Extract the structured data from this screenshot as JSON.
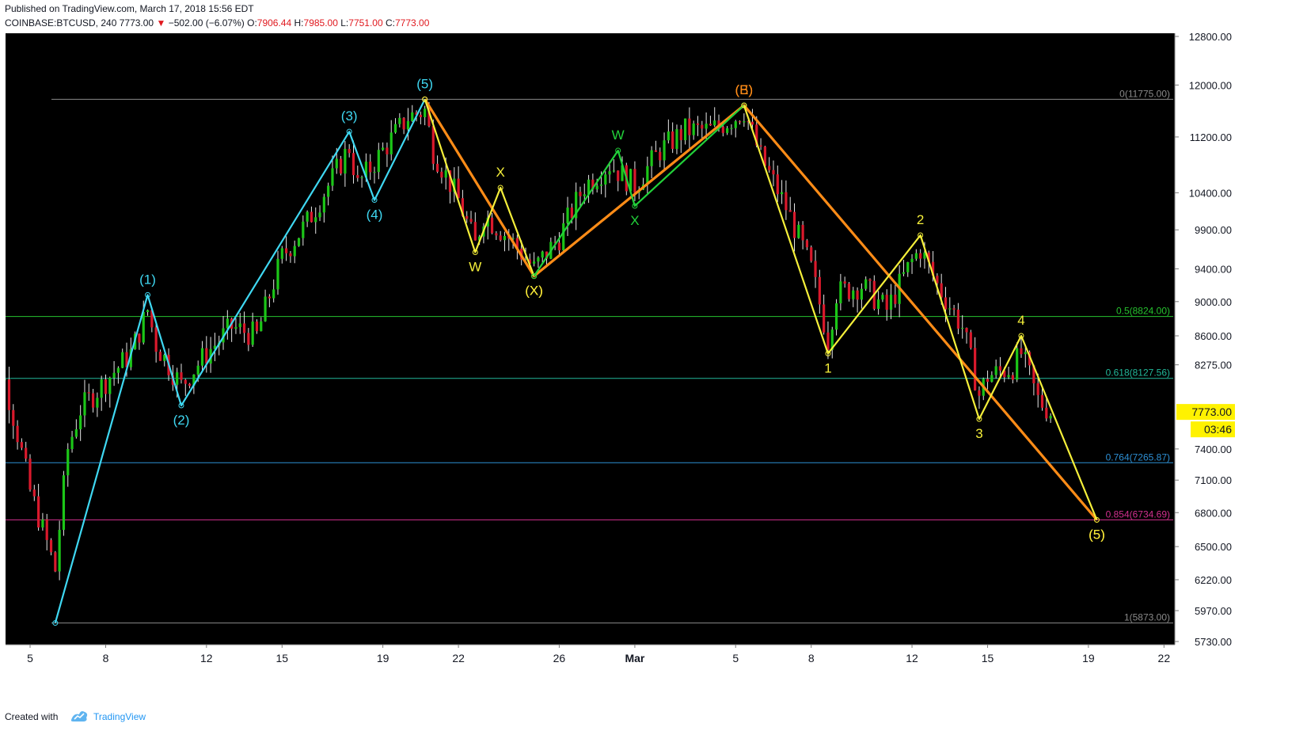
{
  "header": {
    "published": "Published on TradingView.com, March 17, 2018 15:56 EDT",
    "symbol": "COINBASE:BTCUSD, 240",
    "last": "7773.00",
    "change_arrow": "▼",
    "change": "−502.00 (−6.07%)",
    "open_label": "O:",
    "open": "7906.44",
    "high_label": "H:",
    "high": "7985.00",
    "low_label": "L:",
    "low": "7751.00",
    "close_label": "C:",
    "close": "7773.00"
  },
  "footer": {
    "created_with": "Created with",
    "brand": "TradingView"
  },
  "colors": {
    "background": "#000000",
    "up": "#1cc618",
    "down": "#d9192c",
    "cyan": "#3fd8f2",
    "orange": "#ff8c17",
    "yellow": "#f5ef3a",
    "green_wave": "#22d13a",
    "price_tag": "#fff200"
  },
  "chart_data": {
    "type": "candlestick",
    "symbol": "COINBASE:BTCUSD",
    "interval": "240",
    "x_axis_ticks": [
      {
        "label": "5",
        "x": "2018-02-05"
      },
      {
        "label": "8",
        "x": "2018-02-08"
      },
      {
        "label": "12",
        "x": "2018-02-12"
      },
      {
        "label": "15",
        "x": "2018-02-15"
      },
      {
        "label": "19",
        "x": "2018-02-19"
      },
      {
        "label": "22",
        "x": "2018-02-22"
      },
      {
        "label": "26",
        "x": "2018-02-26"
      },
      {
        "label": "Mar",
        "x": "2018-03-01"
      },
      {
        "label": "5",
        "x": "2018-03-05"
      },
      {
        "label": "8",
        "x": "2018-03-08"
      },
      {
        "label": "12",
        "x": "2018-03-12"
      },
      {
        "label": "15",
        "x": "2018-03-15"
      },
      {
        "label": "19",
        "x": "2018-03-19"
      },
      {
        "label": "22",
        "x": "2018-03-22"
      }
    ],
    "y_axis_ticks": [
      12800,
      12000,
      11200,
      10400,
      9900,
      9400,
      9000,
      8600,
      8275,
      7400,
      7100,
      6800,
      6500,
      6220,
      5970,
      5730
    ],
    "ylim": [
      5730,
      12800
    ],
    "y_scale": "log",
    "last_price": "7773.00",
    "bar_countdown": "03:46",
    "fib_levels": [
      {
        "label": "0(11775.00)",
        "ratio": 0,
        "price": 11775.0,
        "color": "#8a8a8a"
      },
      {
        "label": "0.5(8824.00)",
        "ratio": 0.5,
        "price": 8824.0,
        "color": "#26c22e"
      },
      {
        "label": "0.618(8127.56)",
        "ratio": 0.618,
        "price": 8127.56,
        "color": "#22b89a"
      },
      {
        "label": "0.764(7265.87)",
        "ratio": 0.764,
        "price": 7265.87,
        "color": "#2d8fd4"
      },
      {
        "label": "0.854(6734.69)",
        "ratio": 0.854,
        "price": 6734.69,
        "color": "#d2308f"
      },
      {
        "label": "1(5873.00)",
        "ratio": 1,
        "price": 5873.0,
        "color": "#8a8a8a"
      }
    ],
    "series": [
      {
        "name": "cyan",
        "color": "#3fd8f2",
        "points": [
          {
            "x": "2018-02-06T00:00",
            "y": 5873
          },
          {
            "x": "2018-02-09T16:00",
            "y": 9080,
            "label": "(1)",
            "pos": "above"
          },
          {
            "x": "2018-02-11T00:00",
            "y": 7840,
            "label": "(2)",
            "pos": "below"
          },
          {
            "x": "2018-02-17T16:00",
            "y": 11280,
            "label": "(3)",
            "pos": "above"
          },
          {
            "x": "2018-02-18T16:00",
            "y": 10300,
            "label": "(4)",
            "pos": "below"
          },
          {
            "x": "2018-02-20T16:00",
            "y": 11775,
            "label": "(5)",
            "pos": "above"
          }
        ]
      },
      {
        "name": "orange",
        "color": "#ff8c17",
        "points": [
          {
            "x": "2018-02-20T16:00",
            "y": 11775
          },
          {
            "x": "2018-02-25T00:00",
            "y": 9310,
            "label": "(X)",
            "pos": "below"
          },
          {
            "x": "2018-03-05T08:00",
            "y": 11680,
            "label": "(B)",
            "pos": "above"
          },
          {
            "x": "2018-03-19T08:00",
            "y": 6734.69,
            "label": "(5)",
            "pos": "below"
          }
        ]
      },
      {
        "name": "yellow-1",
        "color": "#f5ef3a",
        "points": [
          {
            "x": "2018-02-20T16:00",
            "y": 11775
          },
          {
            "x": "2018-02-22T16:00",
            "y": 9610,
            "label": "W",
            "pos": "below"
          },
          {
            "x": "2018-02-23T16:00",
            "y": 10470,
            "label": "X",
            "pos": "above"
          },
          {
            "x": "2018-02-25T00:00",
            "y": 9310
          }
        ]
      },
      {
        "name": "green",
        "color": "#22d13a",
        "points": [
          {
            "x": "2018-02-25T00:00",
            "y": 9310
          },
          {
            "x": "2018-02-28T08:00",
            "y": 11000,
            "label": "W",
            "pos": "above"
          },
          {
            "x": "2018-03-01T00:00",
            "y": 10220,
            "label": "X",
            "pos": "below"
          },
          {
            "x": "2018-03-05T08:00",
            "y": 11680
          }
        ]
      },
      {
        "name": "yellow-2",
        "color": "#f5ef3a",
        "points": [
          {
            "x": "2018-03-05T08:00",
            "y": 11680
          },
          {
            "x": "2018-03-08T16:00",
            "y": 8400,
            "label": "1",
            "pos": "below"
          },
          {
            "x": "2018-03-12T08:00",
            "y": 9830,
            "label": "2",
            "pos": "above"
          },
          {
            "x": "2018-03-14T16:00",
            "y": 7700,
            "label": "3",
            "pos": "below"
          },
          {
            "x": "2018-03-16T08:00",
            "y": 8600,
            "label": "4",
            "pos": "above"
          },
          {
            "x": "2018-03-19T08:00",
            "y": 6734.69
          }
        ]
      }
    ],
    "extra_labels": [
      {
        "text": "(E)",
        "x": "2018-03-05T08:00",
        "y": 11680,
        "color": "#ff8c17",
        "pos": "above"
      },
      {
        "text": "(X)",
        "x": "2018-02-25T00:00",
        "y": 9310,
        "color": "#f5ef3a",
        "pos": "below"
      },
      {
        "text": "(5)",
        "x": "2018-03-19T08:00",
        "y": 6734.69,
        "color": "#f5ef3a",
        "pos": "below"
      }
    ],
    "candle_anchors": [
      [
        "2018-02-03",
        8600
      ],
      [
        "2018-02-04",
        8100
      ],
      [
        "2018-02-05",
        7000
      ],
      [
        "2018-02-06",
        6300
      ],
      [
        "2018-02-06T12",
        7400
      ],
      [
        "2018-02-07",
        7800
      ],
      [
        "2018-02-08",
        8100
      ],
      [
        "2018-02-09",
        8400
      ],
      [
        "2018-02-09T16",
        8900
      ],
      [
        "2018-02-10",
        8500
      ],
      [
        "2018-02-11",
        8050
      ],
      [
        "2018-02-12",
        8400
      ],
      [
        "2018-02-13",
        8700
      ],
      [
        "2018-02-14",
        8600
      ],
      [
        "2018-02-15",
        9550
      ],
      [
        "2018-02-16",
        10000
      ],
      [
        "2018-02-17",
        10600
      ],
      [
        "2018-02-17T16",
        11050
      ],
      [
        "2018-02-18",
        10500
      ],
      [
        "2018-02-19",
        11000
      ],
      [
        "2018-02-20",
        11500
      ],
      [
        "2018-02-20T16",
        11600
      ],
      [
        "2018-02-21",
        11000
      ],
      [
        "2018-02-22",
        10300
      ],
      [
        "2018-02-22T16",
        9700
      ],
      [
        "2018-02-23",
        10100
      ],
      [
        "2018-02-24",
        9800
      ],
      [
        "2018-02-25",
        9400
      ],
      [
        "2018-02-26",
        9800
      ],
      [
        "2018-02-27",
        10500
      ],
      [
        "2018-02-28",
        10800
      ],
      [
        "2018-03-01",
        10500
      ],
      [
        "2018-03-02",
        11000
      ],
      [
        "2018-03-03",
        11300
      ],
      [
        "2018-03-04",
        11300
      ],
      [
        "2018-03-05",
        11500
      ],
      [
        "2018-03-05T08",
        11600
      ],
      [
        "2018-03-06",
        10900
      ],
      [
        "2018-03-07",
        10200
      ],
      [
        "2018-03-08",
        9400
      ],
      [
        "2018-03-08T16",
        8550
      ],
      [
        "2018-03-09",
        9100
      ],
      [
        "2018-03-10",
        9200
      ],
      [
        "2018-03-11",
        8900
      ],
      [
        "2018-03-12",
        9500
      ],
      [
        "2018-03-12T08",
        9650
      ],
      [
        "2018-03-13",
        9200
      ],
      [
        "2018-03-14",
        8700
      ],
      [
        "2018-03-14T16",
        7950
      ],
      [
        "2018-03-15",
        8150
      ],
      [
        "2018-03-16",
        8250
      ],
      [
        "2018-03-16T08",
        8400
      ],
      [
        "2018-03-17",
        7900
      ],
      [
        "2018-03-17T12",
        7773
      ]
    ]
  }
}
